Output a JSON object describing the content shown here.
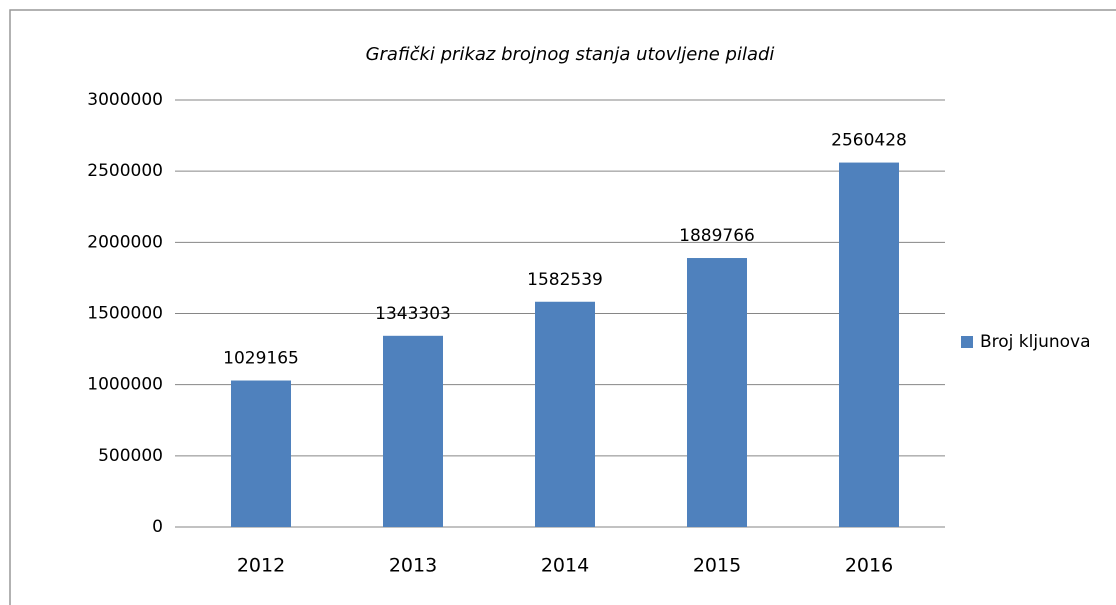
{
  "chart_data": {
    "type": "bar",
    "title": "Grafički prikaz brojnog  stanja utovljene piladi",
    "categories": [
      "2012",
      "2013",
      "2014",
      "2015",
      "2016"
    ],
    "series": [
      {
        "name": "Broj kljunova",
        "color": "#4f81bd",
        "values": [
          1029165,
          1343303,
          1582539,
          1889766,
          2560428
        ]
      }
    ],
    "ylim": [
      0,
      3000000
    ],
    "yticks": [
      0,
      500000,
      1000000,
      1500000,
      2000000,
      2500000,
      3000000
    ],
    "grid": true,
    "legend": "right"
  }
}
